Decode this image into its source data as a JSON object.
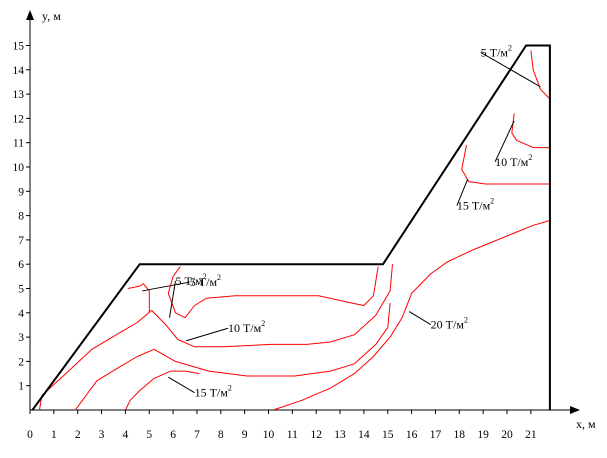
{
  "chart_data": {
    "type": "line",
    "title": "",
    "xlabel": "x, м",
    "ylabel": "y, м",
    "xlim": [
      0,
      23
    ],
    "ylim": [
      0,
      16
    ],
    "grid": false,
    "x_ticks": [
      0,
      1,
      2,
      3,
      4,
      5,
      6,
      7,
      8,
      9,
      10,
      11,
      12,
      13,
      14,
      15,
      16,
      17,
      18,
      19,
      20,
      21
    ],
    "y_ticks": [
      1,
      2,
      3,
      4,
      5,
      6,
      7,
      8,
      9,
      10,
      11,
      12,
      13,
      14,
      15
    ],
    "colors": {
      "profile": "#000000",
      "isolines": "#ff0000",
      "axes": "#000000",
      "leaders": "#000000"
    },
    "profile": {
      "x": [
        0.1,
        4.6,
        14.8,
        20.8,
        21.8,
        21.8
      ],
      "y": [
        0,
        6,
        6,
        15,
        15,
        0
      ]
    },
    "isolines": [
      {
        "level": "5 Т/м²",
        "segments": [
          {
            "x": [
              4.1,
              4.6,
              4.75,
              5.0,
              5.0
            ],
            "y": [
              5.0,
              5.1,
              5.2,
              4.9,
              4.0
            ]
          },
          {
            "x": [
              6.3,
              6.0,
              5.8,
              6.1,
              6.5,
              6.9,
              7.4,
              8.6,
              10.1,
              12.1,
              13.5,
              14.0,
              14.4,
              14.6
            ],
            "y": [
              5.9,
              5.5,
              4.8,
              4.0,
              3.8,
              4.3,
              4.6,
              4.7,
              4.7,
              4.7,
              4.4,
              4.3,
              4.7,
              5.9
            ]
          },
          {
            "x": [
              21.0,
              21.1,
              21.4,
              21.8
            ],
            "y": [
              14.8,
              14.0,
              13.2,
              12.8
            ]
          }
        ]
      },
      {
        "level": "10 Т/м²",
        "segments": [
          {
            "x": [
              0.4,
              0.5,
              1.5,
              2.6,
              3.8,
              4.5,
              5.1,
              5.7,
              6.2,
              6.9,
              8.1,
              10.1,
              11.6,
              12.6,
              13.6,
              14.5,
              15.1,
              15.2
            ],
            "y": [
              0.0,
              0.6,
              1.5,
              2.5,
              3.2,
              3.6,
              4.1,
              3.5,
              2.9,
              2.6,
              2.6,
              2.7,
              2.7,
              2.8,
              3.1,
              3.9,
              4.9,
              6.0
            ]
          },
          {
            "x": [
              20.3,
              20.2,
              20.4,
              21.1,
              21.8
            ],
            "y": [
              12.2,
              11.4,
              11.1,
              10.8,
              10.8
            ]
          }
        ]
      },
      {
        "level": "15 Т/м²",
        "segments": [
          {
            "x": [
              1.9,
              2.2,
              2.8,
              3.8,
              4.5,
              5.2,
              6.1,
              7.5,
              9.1,
              11.1,
              12.6,
              13.6,
              14.5,
              15.0,
              15.1
            ],
            "y": [
              0.0,
              0.4,
              1.2,
              1.8,
              2.2,
              2.5,
              2.0,
              1.6,
              1.4,
              1.4,
              1.6,
              1.9,
              2.7,
              3.4,
              4.4
            ]
          },
          {
            "x": [
              18.3,
              18.1,
              18.4,
              19.1,
              20.2,
              21.8
            ],
            "y": [
              10.9,
              9.9,
              9.4,
              9.3,
              9.3,
              9.3
            ]
          }
        ]
      },
      {
        "level": "20 Т/м²",
        "segments": [
          {
            "x": [
              4.0,
              4.2,
              4.6,
              5.2,
              5.9,
              6.5,
              7.1
            ],
            "y": [
              0.0,
              0.4,
              0.8,
              1.3,
              1.6,
              1.6,
              1.5
            ]
          },
          {
            "x": [
              10.2,
              11.4,
              12.6,
              13.6,
              14.4,
              15.1,
              15.6,
              16.0,
              16.8,
              17.5,
              18.6,
              20.1,
              21.1,
              21.8
            ],
            "y": [
              0.0,
              0.4,
              0.9,
              1.5,
              2.2,
              3.0,
              3.8,
              4.8,
              5.6,
              6.1,
              6.6,
              7.2,
              7.6,
              7.8
            ]
          }
        ]
      }
    ],
    "annotations": [
      {
        "text": "5 Т/м²",
        "x": 6.7,
        "y": 5.1,
        "anchor_x": 4.7,
        "anchor_y": 4.9
      },
      {
        "text": "5 Т/м²",
        "x": 6.1,
        "y": 5.15,
        "anchor_x": 5.85,
        "anchor_y": 3.8
      },
      {
        "text": "10 Т/м²",
        "x": 8.3,
        "y": 3.2,
        "anchor_x": 6.55,
        "anchor_y": 2.85
      },
      {
        "text": "15 Т/м²",
        "x": 6.9,
        "y": 0.55,
        "anchor_x": 5.8,
        "anchor_y": 1.35
      },
      {
        "text": "20 Т/м²",
        "x": 16.8,
        "y": 3.35,
        "anchor_x": 15.9,
        "anchor_y": 4.05
      },
      {
        "text": "5 Т/м²",
        "x": 18.9,
        "y": 14.55,
        "anchor_x": 21.4,
        "anchor_y": 13.3
      },
      {
        "text": "10 Т/м²",
        "x": 19.5,
        "y": 10.05,
        "anchor_x": 20.3,
        "anchor_y": 11.9
      },
      {
        "text": "15 Т/м²",
        "x": 17.9,
        "y": 8.25,
        "anchor_x": 18.35,
        "anchor_y": 9.5
      }
    ]
  }
}
